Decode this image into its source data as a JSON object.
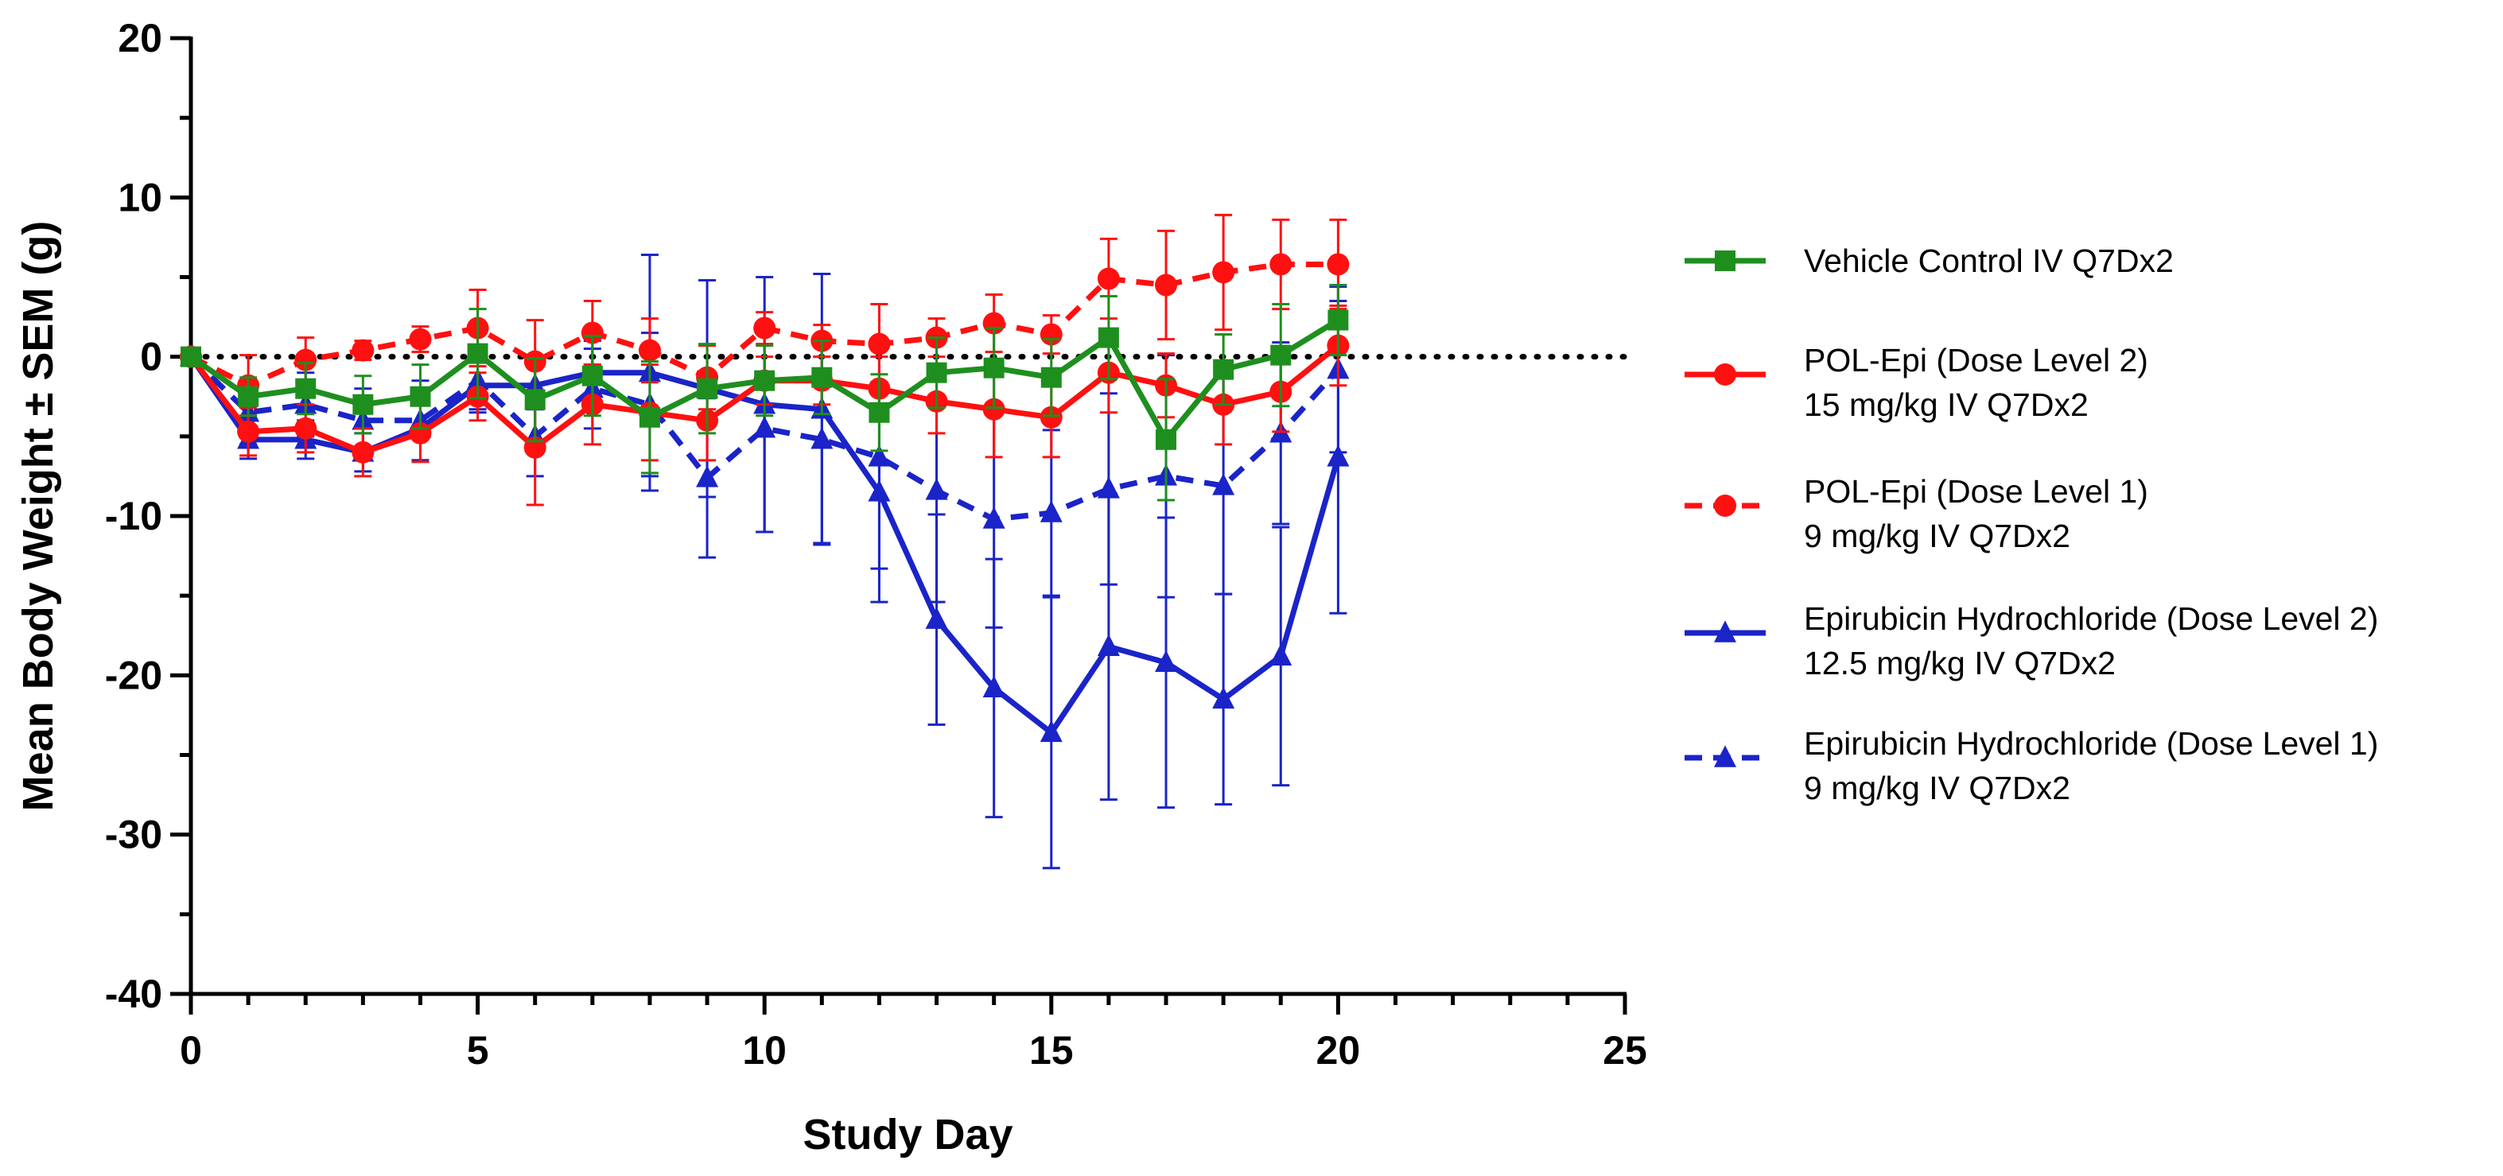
{
  "chart_data": {
    "type": "line",
    "title": "",
    "xlabel": "Study Day",
    "ylabel": "Mean Body Weight ± SEM (g)",
    "xlim": [
      0,
      25
    ],
    "ylim": [
      -40,
      20
    ],
    "xticks": [
      0,
      5,
      10,
      15,
      20,
      25
    ],
    "yticks": [
      -40,
      -30,
      -20,
      -10,
      0,
      10,
      20
    ],
    "x_tick_labels": [
      "0",
      "5",
      "10",
      "15",
      "20",
      "25"
    ],
    "y_tick_labels": [
      "-40",
      "-30",
      "-20",
      "-10",
      "0",
      "10",
      "20"
    ],
    "reference_line": 0,
    "x": [
      0,
      1,
      2,
      3,
      4,
      5,
      6,
      7,
      8,
      9,
      10,
      11,
      12,
      13,
      14,
      15,
      16,
      17,
      18,
      19,
      20
    ],
    "legend_position": "right",
    "series": [
      {
        "name": "Vehicle Control IV Q7Dx2",
        "legend_lines": [
          "Vehicle Control IV Q7Dx2"
        ],
        "color": "#1e8f1e",
        "marker": "square",
        "dashed": false,
        "values": [
          0,
          -2.5,
          -2.0,
          -3.0,
          -2.5,
          0.2,
          -2.7,
          -1.2,
          -3.8,
          -2.0,
          -1.5,
          -1.3,
          -3.5,
          -1.0,
          -0.7,
          -1.3,
          1.2,
          -5.2,
          -0.8,
          0.1,
          2.3
        ],
        "errors": [
          0,
          1.2,
          1.6,
          1.8,
          2.0,
          2.8,
          2.6,
          2.5,
          3.5,
          2.8,
          2.2,
          2.3,
          2.4,
          2.2,
          2.5,
          2.4,
          2.6,
          3.8,
          2.2,
          3.2,
          2.2
        ]
      },
      {
        "name": "POL-Epi (Dose Level 2) 15 mg/kg IV Q7Dx2",
        "legend_lines": [
          "POL-Epi (Dose Level 2)",
          "15 mg/kg IV Q7Dx2"
        ],
        "color": "#ff1010",
        "marker": "circle",
        "dashed": false,
        "values": [
          0,
          -4.7,
          -4.5,
          -6.0,
          -4.8,
          -2.5,
          -5.7,
          -3.0,
          -3.5,
          -4.0,
          -1.5,
          -1.5,
          -2.0,
          -2.8,
          -3.3,
          -3.8,
          -1.0,
          -1.8,
          -3.0,
          -2.2,
          0.7
        ],
        "errors": [
          0,
          1.5,
          1.5,
          1.5,
          1.8,
          1.5,
          3.6,
          2.5,
          3.0,
          2.5,
          1.5,
          1.5,
          2.0,
          2.0,
          3.0,
          2.5,
          2.5,
          2.0,
          2.5,
          2.5,
          2.5
        ]
      },
      {
        "name": "POL-Epi (Dose Level 1) 9 mg/kg IV Q7Dx2",
        "legend_lines": [
          "POL-Epi (Dose Level 1)",
          "9 mg/kg IV Q7Dx2"
        ],
        "color": "#ff1010",
        "marker": "circle",
        "dashed": true,
        "values": [
          0,
          -1.8,
          -0.2,
          0.4,
          1.1,
          1.8,
          -0.3,
          1.5,
          0.4,
          -1.3,
          1.8,
          1.0,
          0.8,
          1.2,
          2.1,
          1.4,
          4.9,
          4.5,
          5.3,
          5.8,
          5.8
        ],
        "errors": [
          0,
          1.9,
          1.4,
          0.6,
          0.8,
          2.4,
          2.6,
          2.0,
          2.0,
          2.0,
          1.0,
          1.0,
          2.5,
          1.2,
          1.8,
          1.2,
          2.5,
          3.4,
          3.6,
          2.8,
          2.8
        ]
      },
      {
        "name": "Epirubicin Hydrochloride (Dose Level 2) 12.5 mg/kg IV Q7Dx2",
        "legend_lines": [
          "Epirubicin Hydrochloride (Dose Level 2)",
          "12.5 mg/kg IV Q7Dx2"
        ],
        "color": "#1a24c8",
        "marker": "triangle",
        "dashed": false,
        "values": [
          0,
          -5.2,
          -5.2,
          -6.0,
          -4.5,
          -1.8,
          -1.8,
          -1.0,
          -1.0,
          -2.0,
          -3.0,
          -3.3,
          -8.5,
          -16.5,
          -20.8,
          -23.6,
          -18.2,
          -19.2,
          -21.5,
          -18.8,
          -6.3
        ],
        "errors": [
          0,
          1.2,
          1.2,
          1.2,
          2.0,
          1.5,
          1.5,
          2.0,
          7.4,
          6.8,
          8.0,
          8.5,
          6.9,
          6.6,
          8.1,
          8.5,
          9.6,
          9.1,
          6.6,
          8.1,
          9.8
        ]
      },
      {
        "name": "Epirubicin Hydrochloride (Dose Level 1) 9 mg/kg IV Q7Dx2",
        "legend_lines": [
          "Epirubicin Hydrochloride (Dose Level 1)",
          "9 mg/kg IV Q7Dx2"
        ],
        "color": "#1a24c8",
        "marker": "triangle",
        "dashed": true,
        "values": [
          0,
          -3.5,
          -3.0,
          -4.0,
          -4.0,
          -1.5,
          -5.0,
          -2.0,
          -3.0,
          -7.6,
          -4.5,
          -5.2,
          -6.3,
          -8.4,
          -10.2,
          -9.8,
          -8.3,
          -7.5,
          -8.1,
          -4.8,
          -0.8
        ],
        "errors": [
          0,
          2.0,
          2.0,
          2.0,
          2.5,
          2.0,
          2.5,
          2.5,
          4.5,
          5.0,
          6.5,
          6.5,
          7.0,
          7.0,
          6.8,
          5.2,
          6.0,
          7.6,
          6.8,
          5.7,
          5.2
        ]
      }
    ]
  }
}
